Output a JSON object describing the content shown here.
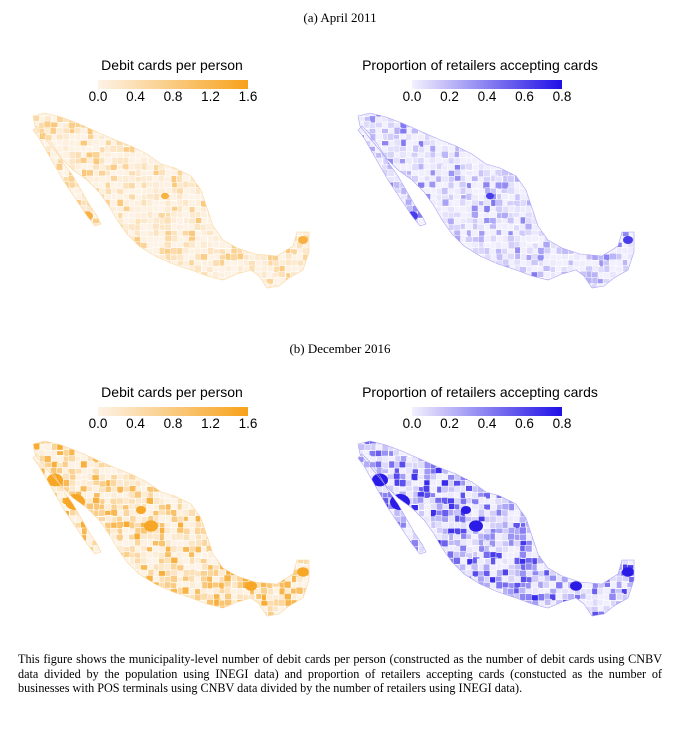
{
  "figure": {
    "panels": [
      {
        "caption": "(a) April 2011",
        "maps": [
          {
            "title": "Debit cards per person",
            "legend_ticks": [
              "0.0",
              "0.4",
              "0.8",
              "1.2",
              "1.6"
            ],
            "scale_range": [
              0.0,
              1.6
            ],
            "color_low": "#fdf3e6",
            "color_high": "#f7a21b",
            "intensity": "low"
          },
          {
            "title": "Proportion of retailers accepting cards",
            "legend_ticks": [
              "0.0",
              "0.2",
              "0.4",
              "0.6",
              "0.8"
            ],
            "scale_range": [
              0.0,
              0.8
            ],
            "color_low": "#f3f1fd",
            "color_high": "#1f10e6",
            "intensity": "low"
          }
        ]
      },
      {
        "caption": "(b) December 2016",
        "maps": [
          {
            "title": "Debit cards per person",
            "legend_ticks": [
              "0.0",
              "0.4",
              "0.8",
              "1.2",
              "1.6"
            ],
            "scale_range": [
              0.0,
              1.6
            ],
            "color_low": "#fdf3e6",
            "color_high": "#f7a21b",
            "intensity": "high"
          },
          {
            "title": "Proportion of retailers accepting cards",
            "legend_ticks": [
              "0.0",
              "0.2",
              "0.4",
              "0.6",
              "0.8"
            ],
            "scale_range": [
              0.0,
              0.8
            ],
            "color_low": "#f3f1fd",
            "color_high": "#1f10e6",
            "intensity": "high"
          }
        ]
      }
    ]
  },
  "footnote": "This figure shows the municipality-level number of debit cards per person (constructed as the number of debit cards using CNBV data divided by the population using INEGI data) and proportion of retailers accepting cards (constucted as the number of businesses with POS terminals using CNBV data divided by the number of retailers using INEGI data)."
}
